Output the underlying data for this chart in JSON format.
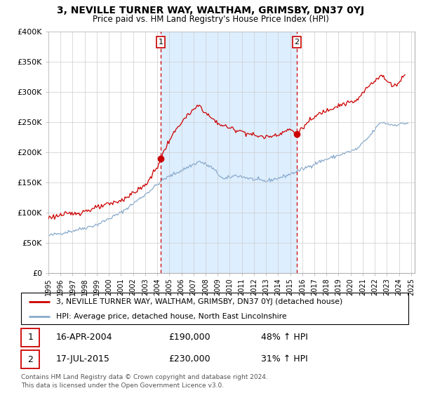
{
  "title": "3, NEVILLE TURNER WAY, WALTHAM, GRIMSBY, DN37 0YJ",
  "subtitle": "Price paid vs. HM Land Registry's House Price Index (HPI)",
  "ylim": [
    0,
    400000
  ],
  "yticks": [
    0,
    50000,
    100000,
    150000,
    200000,
    250000,
    300000,
    350000,
    400000
  ],
  "ytick_labels": [
    "£0",
    "£50K",
    "£100K",
    "£150K",
    "£200K",
    "£250K",
    "£300K",
    "£350K",
    "£400K"
  ],
  "xlim_start": 1995.0,
  "xlim_end": 2025.3,
  "sale1_year": 2004.29,
  "sale1_price": 190000,
  "sale2_year": 2015.54,
  "sale2_price": 230000,
  "sale1_date": "16-APR-2004",
  "sale2_date": "17-JUL-2015",
  "sale1_pct": "48% ↑ HPI",
  "sale2_pct": "31% ↑ HPI",
  "sale1_amount": "£190,000",
  "sale2_amount": "£230,000",
  "red_line_color": "#cc0000",
  "blue_line_color": "#88aacc",
  "shade_color": "#ddeeff",
  "dashed_line_color": "#cc0000",
  "legend_label_red": "3, NEVILLE TURNER WAY, WALTHAM, GRIMSBY, DN37 0YJ (detached house)",
  "legend_label_blue": "HPI: Average price, detached house, North East Lincolnshire",
  "footer": "Contains HM Land Registry data © Crown copyright and database right 2024.\nThis data is licensed under the Open Government Licence v3.0."
}
